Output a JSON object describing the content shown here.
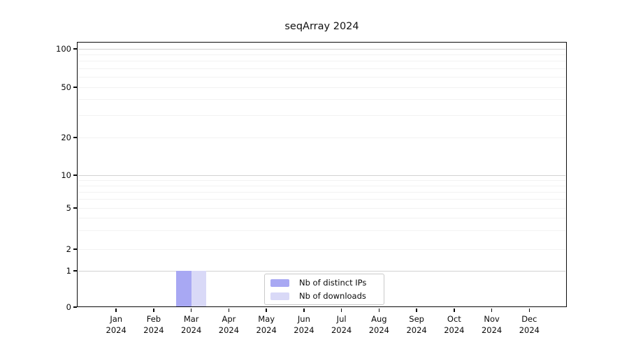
{
  "chart_data": {
    "type": "bar",
    "title": "seqArray 2024",
    "xlabel": "",
    "ylabel": "",
    "months": [
      "Jan",
      "Feb",
      "Mar",
      "Apr",
      "May",
      "Jun",
      "Jul",
      "Aug",
      "Sep",
      "Oct",
      "Nov",
      "Dec"
    ],
    "year": "2024",
    "yticks": [
      0,
      1,
      2,
      5,
      10,
      20,
      50,
      100
    ],
    "ylim": [
      0,
      110
    ],
    "yscale": "log-like with zero baseline",
    "grid": "horizontal, log minor gridlines, majors at 1/10/100",
    "legend_position": "inside bottom-center",
    "series": [
      {
        "name": "Nb of distinct IPs",
        "color": "#a8a8f3",
        "values": [
          0,
          0,
          1,
          0,
          0,
          0,
          0,
          0,
          0,
          0,
          0,
          0
        ]
      },
      {
        "name": "Nb of downloads",
        "color": "#d9d9f7",
        "values": [
          0,
          0,
          1,
          0,
          0,
          0,
          0,
          0,
          0,
          0,
          0,
          0
        ]
      }
    ]
  }
}
